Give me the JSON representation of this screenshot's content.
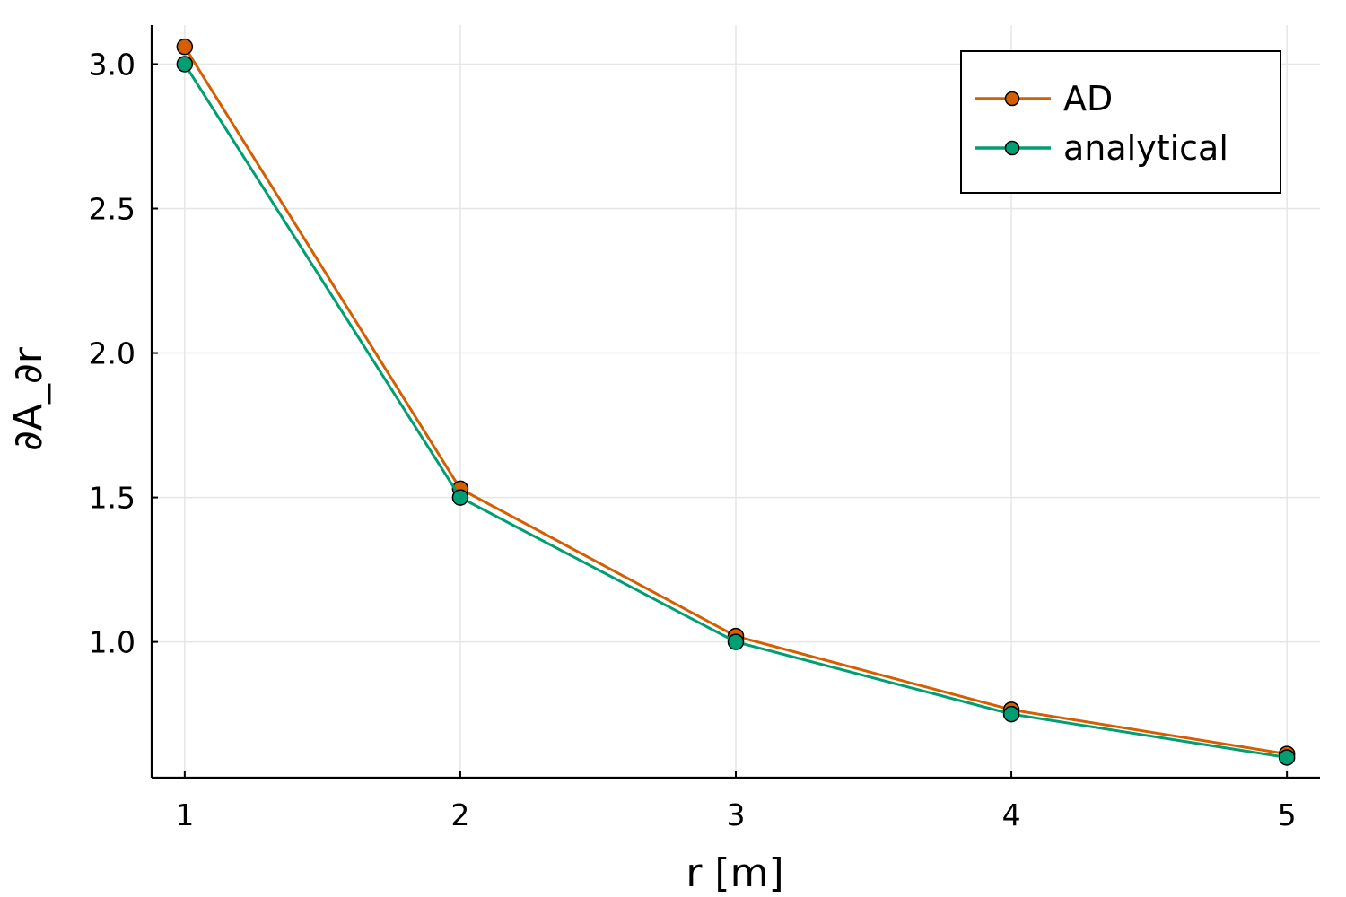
{
  "chart_data": {
    "type": "line",
    "title": "",
    "xlabel": "r [m]",
    "ylabel": "∂A_∂r",
    "x": [
      1,
      2,
      3,
      4,
      5
    ],
    "xlim": [
      0.88,
      5.12
    ],
    "ylim": [
      0.53,
      3.135
    ],
    "xticks": [
      1,
      2,
      3,
      4,
      5
    ],
    "xtick_labels": [
      "1",
      "2",
      "3",
      "4",
      "5"
    ],
    "yticks": [
      1.0,
      1.5,
      2.0,
      2.5,
      3.0
    ],
    "ytick_labels": [
      "1.0",
      "1.5",
      "2.0",
      "2.5",
      "3.0"
    ],
    "grid": true,
    "legend_position": "top-right",
    "markers": "circle",
    "series": [
      {
        "name": "AD",
        "color": "#d55e00",
        "values": [
          3.06,
          1.53,
          1.02,
          0.765,
          0.612
        ]
      },
      {
        "name": "analytical",
        "color": "#009e73",
        "values": [
          3.0,
          1.5,
          1.0,
          0.75,
          0.6
        ]
      }
    ]
  }
}
